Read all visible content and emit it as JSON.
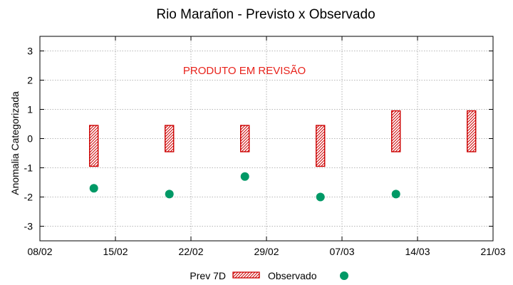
{
  "chart_data": {
    "type": "scatter",
    "title": "Rio Marañon - Previsto x Observado",
    "ylabel": "Anomalia Categorizada",
    "xlabel": "",
    "annotation": "PRODUTO EM REVISÃO",
    "x_tick_labels": [
      "08/02",
      "15/02",
      "22/02",
      "29/02",
      "07/03",
      "14/03",
      "21/03"
    ],
    "y_tick_labels": [
      "3",
      "2",
      "1",
      "0",
      "-1",
      "-2",
      "-3"
    ],
    "ylim": [
      -3.5,
      3.5
    ],
    "grid": true,
    "legend_position": "bottom",
    "colors": {
      "forecast": "#cc0000",
      "observed": "#009966",
      "annotation": "#e8231c",
      "grid": "#a0a0a0"
    },
    "series": [
      {
        "name": "Prev 7D",
        "kind": "interval-box",
        "points": [
          {
            "x": "13/02",
            "low": -0.95,
            "high": 0.45
          },
          {
            "x": "20/02",
            "low": -0.45,
            "high": 0.45
          },
          {
            "x": "27/02",
            "low": -0.45,
            "high": 0.45
          },
          {
            "x": "05/03",
            "low": -0.95,
            "high": 0.45
          },
          {
            "x": "12/03",
            "low": -0.45,
            "high": 0.95
          },
          {
            "x": "19/03",
            "low": -0.45,
            "high": 0.95
          }
        ]
      },
      {
        "name": "Observado",
        "kind": "point",
        "points": [
          {
            "x": "13/02",
            "y": -1.7
          },
          {
            "x": "20/02",
            "y": -1.9
          },
          {
            "x": "27/02",
            "y": -1.3
          },
          {
            "x": "05/03",
            "y": -2.0
          },
          {
            "x": "12/03",
            "y": -1.9
          }
        ]
      }
    ]
  }
}
